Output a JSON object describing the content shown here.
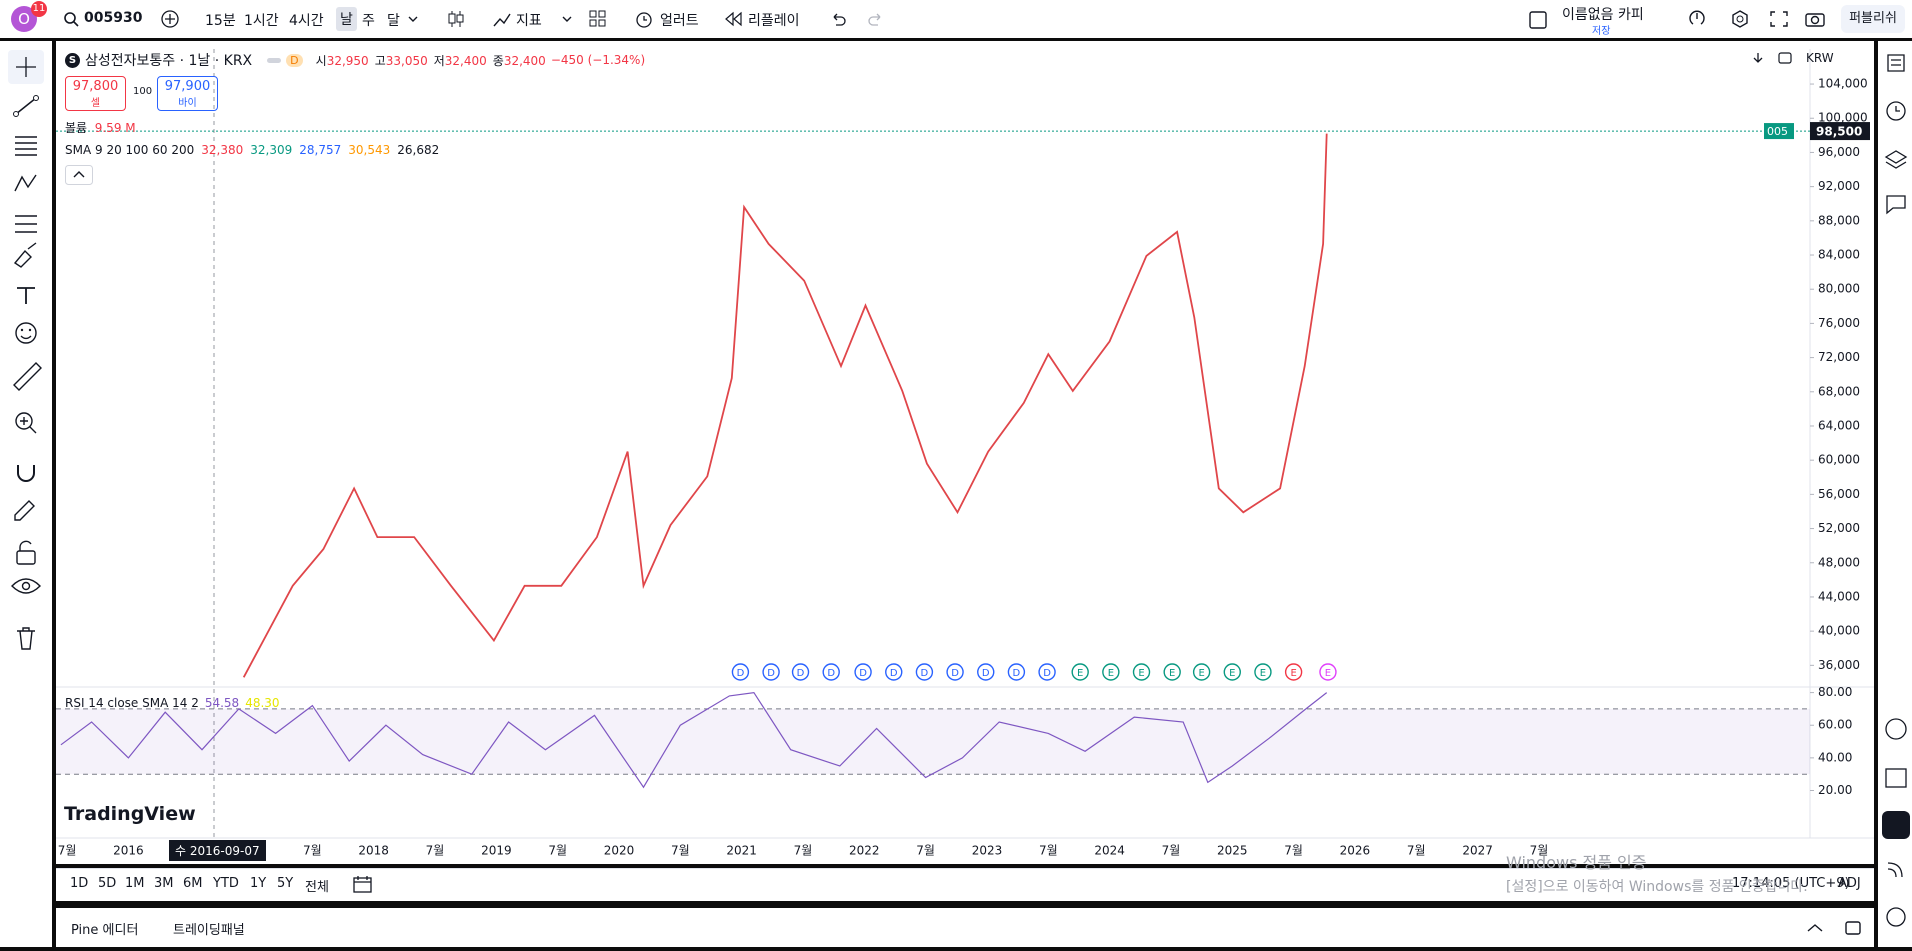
{
  "toolbar": {
    "avatar": "O",
    "badge": "11",
    "symbol": "005930",
    "intervals": [
      "15분",
      "1시간",
      "4시간",
      "날",
      "주",
      "달"
    ],
    "indicators": "지표",
    "alert": "얼러트",
    "replay": "리플레이",
    "layout_name": "이름없음 카피",
    "layout_status": "저장",
    "publish": "퍼블리쉬"
  },
  "legend": {
    "logo": "S",
    "title": "삼성전자보통주 · 1날 · KRX",
    "badge": "D",
    "ohlc": [
      {
        "label": "시",
        "value": "32,950"
      },
      {
        "label": "고",
        "value": "33,050"
      },
      {
        "label": "저",
        "value": "32,400"
      },
      {
        "label": "종",
        "value": "32,400"
      }
    ],
    "change": "−450 (−1.34%)",
    "sell": {
      "price": "97,800",
      "label": "셀"
    },
    "spread": "100",
    "buy": {
      "price": "97,900",
      "label": "바이"
    },
    "volume": {
      "label": "볼륨",
      "value": "9.59 M"
    },
    "sma": {
      "label": "SMA 9 20 100 60 200",
      "values": [
        {
          "text": "32,380",
          "color": "#f23645"
        },
        {
          "text": "32,309",
          "color": "#089981"
        },
        {
          "text": "28,757",
          "color": "#2962ff"
        },
        {
          "text": "30,543",
          "color": "#ff9800"
        },
        {
          "text": "26,682",
          "color": "#131722"
        }
      ]
    }
  },
  "chart_data": [
    {
      "type": "line",
      "color": "#e0464a",
      "x": [
        2016.94,
        2017.34,
        2017.59,
        2017.84,
        2018.03,
        2018.33,
        2018.63,
        2018.98,
        2019.23,
        2019.53,
        2019.82,
        2020.07,
        2020.2,
        2020.42,
        2020.72,
        2020.92,
        2021.02,
        2021.22,
        2021.51,
        2021.81,
        2022.01,
        2022.31,
        2022.51,
        2022.76,
        2023.01,
        2023.3,
        2023.5,
        2023.7,
        2024.0,
        2024.3,
        2024.55,
        2024.69,
        2024.89,
        2025.09,
        2025.39,
        2025.59,
        2025.74,
        2025.77
      ],
      "values": [
        34600,
        45300,
        49600,
        56700,
        51000,
        51000,
        45300,
        38900,
        45300,
        45300,
        51000,
        61000,
        45300,
        52400,
        58100,
        69600,
        89600,
        85300,
        81000,
        71000,
        78100,
        68100,
        59600,
        53900,
        61000,
        66700,
        72400,
        68100,
        73900,
        83900,
        86700,
        76700,
        56700,
        53900,
        56700,
        71000,
        85300,
        98200
      ],
      "xlim": [
        2015.41,
        2029.71
      ],
      "ylim": [
        33700,
        108100
      ],
      "xticks": [
        {
          "value": 2015.5,
          "label": "7월"
        },
        2016,
        {
          "value": 2017.5,
          "label": "7월"
        },
        2018,
        {
          "value": 2018.5,
          "label": "7월"
        },
        2019,
        {
          "value": 2019.5,
          "label": "7월"
        },
        2020,
        {
          "value": 2020.5,
          "label": "7월"
        },
        2021,
        {
          "value": 2021.5,
          "label": "7월"
        },
        2022,
        {
          "value": 2022.5,
          "label": "7월"
        },
        2023,
        {
          "value": 2023.5,
          "label": "7월"
        },
        2024,
        {
          "value": 2024.5,
          "label": "7월"
        },
        2025,
        {
          "value": 2025.5,
          "label": "7월"
        },
        2026,
        {
          "value": 2026.5,
          "label": "7월"
        },
        2027,
        {
          "value": 2027.5,
          "label": "7월"
        }
      ],
      "yticks": [
        {
          "value": 36000,
          "label": "36,000"
        },
        {
          "value": 40000,
          "label": "40,000"
        },
        {
          "value": 44000,
          "label": "44,000"
        },
        {
          "value": 48000,
          "label": "48,000"
        },
        {
          "value": 52000,
          "label": "52,000"
        },
        {
          "value": 56000,
          "label": "56,000"
        },
        {
          "value": 60000,
          "label": "60,000"
        },
        {
          "value": 64000,
          "label": "64,000"
        },
        {
          "value": 68000,
          "label": "68,000"
        },
        {
          "value": 72000,
          "label": "72,000"
        },
        {
          "value": 76000,
          "label": "76,000"
        },
        {
          "value": 80000,
          "label": "80,000"
        },
        {
          "value": 84000,
          "label": "84,000"
        },
        {
          "value": 88000,
          "label": "88,000"
        },
        {
          "value": 92000,
          "label": "92,000"
        },
        {
          "value": 96000,
          "label": "96,000"
        },
        {
          "value": 100000,
          "label": "100,000"
        },
        {
          "value": 104000,
          "label": "104,000"
        }
      ],
      "last_price": {
        "value": 98500,
        "label": "98,500"
      },
      "symbol_tag": "005",
      "events": [
        {
          "x": 2020.99,
          "label": "D",
          "color": "#2962ff"
        },
        {
          "x": 2021.24,
          "label": "D",
          "color": "#2962ff"
        },
        {
          "x": 2021.48,
          "label": "D",
          "color": "#2962ff"
        },
        {
          "x": 2021.73,
          "label": "D",
          "color": "#2962ff"
        },
        {
          "x": 2021.99,
          "label": "D",
          "color": "#2962ff"
        },
        {
          "x": 2022.24,
          "label": "D",
          "color": "#2962ff"
        },
        {
          "x": 2022.49,
          "label": "D",
          "color": "#2962ff"
        },
        {
          "x": 2022.74,
          "label": "D",
          "color": "#2962ff"
        },
        {
          "x": 2022.99,
          "label": "D",
          "color": "#2962ff"
        },
        {
          "x": 2023.24,
          "label": "D",
          "color": "#2962ff"
        },
        {
          "x": 2023.49,
          "label": "D",
          "color": "#2962ff"
        },
        {
          "x": 2023.76,
          "label": "E",
          "color": "#089981"
        },
        {
          "x": 2024.01,
          "label": "E",
          "color": "#089981"
        },
        {
          "x": 2024.26,
          "label": "E",
          "color": "#089981"
        },
        {
          "x": 2024.51,
          "label": "E",
          "color": "#089981"
        },
        {
          "x": 2024.75,
          "label": "E",
          "color": "#089981"
        },
        {
          "x": 2025.0,
          "label": "E",
          "color": "#089981"
        },
        {
          "x": 2025.25,
          "label": "E",
          "color": "#089981"
        },
        {
          "x": 2025.5,
          "label": "E",
          "color": "#f23645"
        },
        {
          "x": 2025.78,
          "label": "E",
          "color": "#e040fb"
        }
      ]
    },
    {
      "type": "line",
      "title": "RSI 14 close SMA 14 2",
      "readouts": [
        {
          "text": "54.58",
          "color": "#7e57c2"
        },
        {
          "text": "48.30",
          "color": "#e6e600"
        }
      ],
      "color": "#7e57c2",
      "x": [
        2015.45,
        2015.7,
        2016.0,
        2016.3,
        2016.6,
        2016.9,
        2017.2,
        2017.5,
        2017.8,
        2018.1,
        2018.4,
        2018.8,
        2019.1,
        2019.4,
        2019.8,
        2020.2,
        2020.5,
        2020.9,
        2021.1,
        2021.4,
        2021.8,
        2022.1,
        2022.5,
        2022.8,
        2023.1,
        2023.5,
        2023.8,
        2024.2,
        2024.6,
        2024.8,
        2025.0,
        2025.3,
        2025.6,
        2025.77
      ],
      "values": [
        48,
        62,
        40,
        68,
        45,
        70,
        55,
        72,
        38,
        60,
        42,
        30,
        62,
        45,
        66,
        22,
        60,
        78,
        80,
        45,
        35,
        58,
        28,
        40,
        62,
        55,
        44,
        65,
        62,
        25,
        35,
        52,
        70,
        80
      ],
      "xlim": [
        2015.41,
        2029.71
      ],
      "ylim": [
        14.8,
        82.2
      ],
      "yticks": [
        {
          "value": 20,
          "label": "20.00"
        },
        {
          "value": 40,
          "label": "40.00"
        },
        {
          "value": 60,
          "label": "60.00"
        },
        {
          "value": 80,
          "label": "80.00"
        }
      ],
      "band": [
        30,
        70
      ]
    }
  ],
  "currency": "KRW",
  "crosshair": "수 2016-09-07",
  "brand": "TradingView",
  "range_buttons": [
    "1D",
    "5D",
    "1M",
    "3M",
    "6M",
    "YTD",
    "1Y",
    "5Y",
    "전체"
  ],
  "clock": "17:14:05 (UTC+9)",
  "adj": "ADJ",
  "bottom_tabs": [
    "Pine 에디터",
    "트레이딩패널"
  ],
  "watermark": [
    "Windows 정품 인증",
    "[설정]으로 이동하여 Windows를 정품 인증합니다."
  ]
}
